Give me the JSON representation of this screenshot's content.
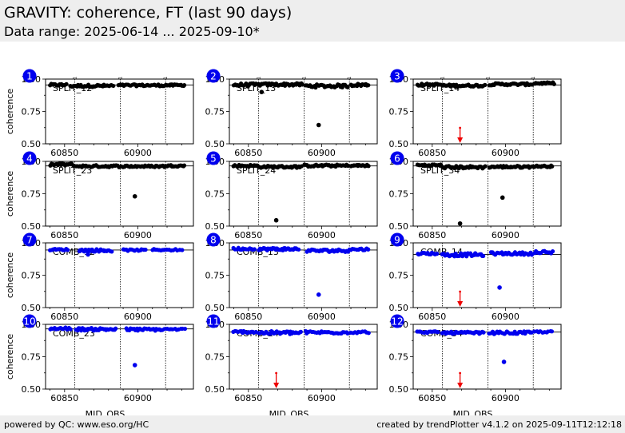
{
  "header": {
    "title": "GRAVITY: coherence, FT (last 90 days)",
    "subtitle": "Data range: 2025-06-14 ... 2025-09-10*"
  },
  "footer": {
    "left": "powered by QC: www.eso.org/HC",
    "right": "created by trendPlotter v4.1.2 on 2025-09-11T12:12:18"
  },
  "colors": {
    "split": "#000000",
    "comb": "#0000ee",
    "badge": "#0000ee",
    "arrow": "#ee0000",
    "header_bg": "#eeeeee"
  },
  "chart_data": {
    "type": "scatter",
    "xlabel": "MJD_OBS",
    "ylabel": "coherence",
    "xlim": [
      60837,
      60938
    ],
    "x_ticks": [
      60850,
      60900
    ],
    "date_markers": [
      {
        "x": 60857,
        "label": "2025-07-01"
      },
      {
        "x": 60888,
        "label": "2025-08-01"
      },
      {
        "x": 60919,
        "label": "2025-09-01"
      }
    ],
    "panels": [
      {
        "id": "1",
        "label": "SPLIT_12",
        "color": "split",
        "ylim": [
          0.5,
          1.0
        ],
        "yticks": [
          "0.50",
          "0.75",
          "1.00"
        ],
        "ref": 0.955,
        "arrows": [],
        "series": [
          {
            "x0": 60840,
            "x1": 60851,
            "n": 14,
            "y": 0.955,
            "j": 0.008
          },
          {
            "x0": 60854,
            "x1": 60883,
            "n": 34,
            "y": 0.948,
            "j": 0.009
          },
          {
            "x0": 60887,
            "x1": 60918,
            "n": 34,
            "y": 0.952,
            "j": 0.007
          },
          {
            "x0": 60919,
            "x1": 60932,
            "n": 16,
            "y": 0.953,
            "j": 0.006
          }
        ],
        "outliers": []
      },
      {
        "id": "2",
        "label": "SPLIT_13",
        "color": "split",
        "ylim": [
          0.5,
          1.0
        ],
        "yticks": [
          "0.50",
          "0.75",
          "1.00"
        ],
        "ref": 0.955,
        "arrows": [],
        "series": [
          {
            "x0": 60840,
            "x1": 60856,
            "n": 18,
            "y": 0.955,
            "j": 0.012
          },
          {
            "x0": 60857,
            "x1": 60887,
            "n": 34,
            "y": 0.958,
            "j": 0.01
          },
          {
            "x0": 60889,
            "x1": 60918,
            "n": 30,
            "y": 0.947,
            "j": 0.012
          },
          {
            "x0": 60920,
            "x1": 60932,
            "n": 16,
            "y": 0.955,
            "j": 0.01
          }
        ],
        "outliers": [
          {
            "x": 60859,
            "y": 0.9
          },
          {
            "x": 60898,
            "y": 0.645
          }
        ]
      },
      {
        "id": "3",
        "label": "SPLIT_14",
        "color": "split",
        "ylim": [
          0.5,
          1.0
        ],
        "yticks": [
          "0.50",
          "0.75",
          "1.00"
        ],
        "ref": 0.955,
        "arrows": [
          {
            "x": 60869
          }
        ],
        "series": [
          {
            "x0": 60840,
            "x1": 60856,
            "n": 18,
            "y": 0.957,
            "j": 0.008
          },
          {
            "x0": 60857,
            "x1": 60886,
            "n": 34,
            "y": 0.95,
            "j": 0.008
          },
          {
            "x0": 60889,
            "x1": 60918,
            "n": 34,
            "y": 0.96,
            "j": 0.008
          },
          {
            "x0": 60920,
            "x1": 60933,
            "n": 16,
            "y": 0.968,
            "j": 0.007
          }
        ],
        "outliers": []
      },
      {
        "id": "4",
        "label": "SPLIT_23",
        "color": "split",
        "ylim": [
          0.5,
          1.0
        ],
        "yticks": [
          "0.50",
          "0.75",
          "1.00"
        ],
        "ref": 0.965,
        "arrows": [],
        "series": [
          {
            "x0": 60840,
            "x1": 60856,
            "n": 18,
            "y": 0.975,
            "j": 0.01
          },
          {
            "x0": 60857,
            "x1": 60887,
            "n": 34,
            "y": 0.963,
            "j": 0.008
          },
          {
            "x0": 60889,
            "x1": 60918,
            "n": 32,
            "y": 0.962,
            "j": 0.007
          },
          {
            "x0": 60919,
            "x1": 60932,
            "n": 16,
            "y": 0.966,
            "j": 0.006
          }
        ],
        "outliers": [
          {
            "x": 60898,
            "y": 0.73
          }
        ]
      },
      {
        "id": "5",
        "label": "SPLIT_24",
        "color": "split",
        "ylim": [
          0.5,
          1.0
        ],
        "yticks": [
          "0.50",
          "0.75",
          "1.00"
        ],
        "ref": 0.965,
        "arrows": [],
        "series": [
          {
            "x0": 60840,
            "x1": 60856,
            "n": 18,
            "y": 0.966,
            "j": 0.008
          },
          {
            "x0": 60857,
            "x1": 60886,
            "n": 34,
            "y": 0.958,
            "j": 0.008
          },
          {
            "x0": 60888,
            "x1": 60918,
            "n": 34,
            "y": 0.967,
            "j": 0.008
          },
          {
            "x0": 60920,
            "x1": 60932,
            "n": 16,
            "y": 0.968,
            "j": 0.006
          }
        ],
        "outliers": [
          {
            "x": 60869,
            "y": 0.545
          }
        ]
      },
      {
        "id": "6",
        "label": "SPLIT_34",
        "color": "split",
        "ylim": [
          0.5,
          1.0
        ],
        "yticks": [
          "0.50",
          "0.75",
          "1.00"
        ],
        "ref": 0.965,
        "arrows": [],
        "series": [
          {
            "x0": 60840,
            "x1": 60856,
            "n": 18,
            "y": 0.97,
            "j": 0.008
          },
          {
            "x0": 60857,
            "x1": 60886,
            "n": 32,
            "y": 0.955,
            "j": 0.01
          },
          {
            "x0": 60889,
            "x1": 60918,
            "n": 34,
            "y": 0.958,
            "j": 0.008
          },
          {
            "x0": 60919,
            "x1": 60932,
            "n": 16,
            "y": 0.962,
            "j": 0.006
          }
        ],
        "outliers": [
          {
            "x": 60869,
            "y": 0.52
          },
          {
            "x": 60898,
            "y": 0.72
          }
        ]
      },
      {
        "id": "7",
        "label": "COMB_12",
        "color": "comb",
        "ylim": [
          0.5,
          1.0
        ],
        "yticks": [
          "0.50",
          "0.75",
          "1.00"
        ],
        "ref": 0.945,
        "arrows": [],
        "series": [
          {
            "x0": 60840,
            "x1": 60852,
            "n": 12,
            "y": 0.948,
            "j": 0.006
          },
          {
            "x0": 60860,
            "x1": 60882,
            "n": 30,
            "y": 0.942,
            "j": 0.01
          },
          {
            "x0": 60890,
            "x1": 60905,
            "n": 14,
            "y": 0.944,
            "j": 0.006
          },
          {
            "x0": 60910,
            "x1": 60918,
            "n": 8,
            "y": 0.947,
            "j": 0.006
          },
          {
            "x0": 60920,
            "x1": 60930,
            "n": 8,
            "y": 0.946,
            "j": 0.006
          }
        ],
        "outliers": [
          {
            "x": 60866,
            "y": 0.91
          }
        ]
      },
      {
        "id": "8",
        "label": "COMB_13",
        "color": "comb",
        "ylim": [
          0.5,
          1.0
        ],
        "yticks": [
          "0.50",
          "0.75",
          "1.00"
        ],
        "ref": 0.945,
        "arrows": [],
        "series": [
          {
            "x0": 60840,
            "x1": 60854,
            "n": 14,
            "y": 0.955,
            "j": 0.008
          },
          {
            "x0": 60857,
            "x1": 60884,
            "n": 34,
            "y": 0.952,
            "j": 0.01
          },
          {
            "x0": 60890,
            "x1": 60918,
            "n": 28,
            "y": 0.94,
            "j": 0.01
          },
          {
            "x0": 60919,
            "x1": 60932,
            "n": 12,
            "y": 0.95,
            "j": 0.008
          }
        ],
        "outliers": [
          {
            "x": 60898,
            "y": 0.6
          }
        ]
      },
      {
        "id": "9",
        "label": "COMB_14",
        "color": "comb",
        "ylim": [
          0.5,
          1.0
        ],
        "yticks": [
          "0.50",
          "0.75",
          "1.00"
        ],
        "ref": 0.91,
        "arrows": [
          {
            "x": 60869
          }
        ],
        "series": [
          {
            "x0": 60840,
            "x1": 60853,
            "n": 14,
            "y": 0.918,
            "j": 0.008
          },
          {
            "x0": 60857,
            "x1": 60885,
            "n": 32,
            "y": 0.908,
            "j": 0.012
          },
          {
            "x0": 60890,
            "x1": 60918,
            "n": 28,
            "y": 0.918,
            "j": 0.01
          },
          {
            "x0": 60920,
            "x1": 60932,
            "n": 12,
            "y": 0.925,
            "j": 0.014
          }
        ],
        "outliers": [
          {
            "x": 60896,
            "y": 0.655
          }
        ]
      },
      {
        "id": "10",
        "label": "COMB_23",
        "color": "comb",
        "ylim": [
          0.5,
          1.0
        ],
        "yticks": [
          "0.50",
          "0.75",
          "1.00"
        ],
        "ref": 0.965,
        "arrows": [],
        "series": [
          {
            "x0": 60840,
            "x1": 60854,
            "n": 14,
            "y": 0.968,
            "j": 0.008
          },
          {
            "x0": 60858,
            "x1": 60885,
            "n": 34,
            "y": 0.962,
            "j": 0.01
          },
          {
            "x0": 60892,
            "x1": 60918,
            "n": 26,
            "y": 0.96,
            "j": 0.01
          },
          {
            "x0": 60920,
            "x1": 60932,
            "n": 10,
            "y": 0.962,
            "j": 0.006
          }
        ],
        "outliers": [
          {
            "x": 60898,
            "y": 0.685
          }
        ]
      },
      {
        "id": "11",
        "label": "COMB_24",
        "color": "comb",
        "ylim": [
          0.5,
          1.0
        ],
        "yticks": [
          "0.50",
          "0.75",
          "1.00"
        ],
        "ref": 0.94,
        "arrows": [
          {
            "x": 60869
          }
        ],
        "series": [
          {
            "x0": 60840,
            "x1": 60855,
            "n": 16,
            "y": 0.942,
            "j": 0.008
          },
          {
            "x0": 60857,
            "x1": 60886,
            "n": 34,
            "y": 0.935,
            "j": 0.012
          },
          {
            "x0": 60889,
            "x1": 60918,
            "n": 28,
            "y": 0.938,
            "j": 0.01
          },
          {
            "x0": 60920,
            "x1": 60932,
            "n": 10,
            "y": 0.94,
            "j": 0.008
          }
        ],
        "outliers": []
      },
      {
        "id": "12",
        "label": "COMB_34",
        "color": "comb",
        "ylim": [
          0.5,
          1.0
        ],
        "yticks": [
          "0.50",
          "0.75",
          "1.00"
        ],
        "ref": 0.94,
        "arrows": [
          {
            "x": 60869
          }
        ],
        "series": [
          {
            "x0": 60840,
            "x1": 60854,
            "n": 14,
            "y": 0.94,
            "j": 0.006
          },
          {
            "x0": 60857,
            "x1": 60885,
            "n": 34,
            "y": 0.935,
            "j": 0.008
          },
          {
            "x0": 60889,
            "x1": 60918,
            "n": 28,
            "y": 0.935,
            "j": 0.01
          },
          {
            "x0": 60920,
            "x1": 60932,
            "n": 10,
            "y": 0.942,
            "j": 0.006
          }
        ],
        "outliers": [
          {
            "x": 60899,
            "y": 0.71
          }
        ]
      }
    ]
  }
}
